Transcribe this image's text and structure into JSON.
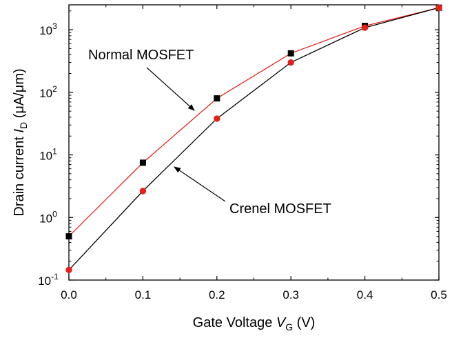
{
  "chart_data": {
    "type": "line",
    "title": "",
    "x": [
      0.0,
      0.1,
      0.2,
      0.3,
      0.4,
      0.5
    ],
    "xlim": [
      0.0,
      0.5
    ],
    "ylim": [
      0.1,
      2500
    ],
    "yscale": "log",
    "grid": false,
    "legend": "none",
    "xticks": [
      "0.0",
      "0.1",
      "0.2",
      "0.3",
      "0.4",
      "0.5"
    ],
    "yticks": [
      {
        "base": "10",
        "exp": "-1",
        "value": 0.1
      },
      {
        "base": "10",
        "exp": "0",
        "value": 1
      },
      {
        "base": "10",
        "exp": "1",
        "value": 10
      },
      {
        "base": "10",
        "exp": "2",
        "value": 100
      },
      {
        "base": "10",
        "exp": "3",
        "value": 1000
      }
    ],
    "xlabel": {
      "main": "Gate Voltage ",
      "italic": "V",
      "sub": "G",
      "tail": " (V)"
    },
    "ylabel": {
      "main": "Drain current ",
      "italic": "I",
      "sub": "D",
      "tail": " (μA/μm)"
    },
    "series": [
      {
        "name": "Normal MOSFET",
        "color": "#e8201a",
        "marker_color": "#000000",
        "marker": "square",
        "values": [
          0.5,
          7.5,
          80,
          420,
          1150,
          2250
        ]
      },
      {
        "name": "Crenel MOSFET",
        "color": "#000000",
        "marker_color": "#e8201a",
        "marker": "circle",
        "values": [
          0.145,
          2.65,
          38,
          300,
          1080,
          2250
        ]
      }
    ],
    "annotations": [
      {
        "text": "Normal MOSFET",
        "points_to_series": 0
      },
      {
        "text": "Crenel MOSFET",
        "points_to_series": 1
      }
    ]
  }
}
